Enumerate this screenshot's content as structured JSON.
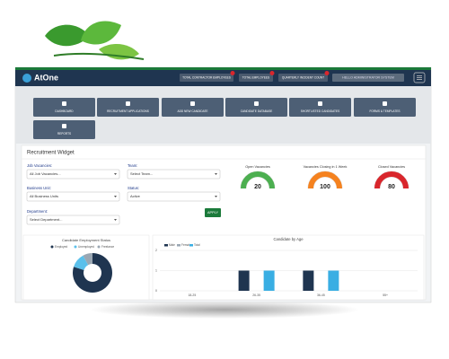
{
  "header": {
    "logo": "AtOne",
    "stats": [
      "TOTAL CONTRACTOR EMPLOYEES",
      "TOTAL EMPLOYEES",
      "QUARTERLY INCIDENT COUNT"
    ],
    "user": "HELLO ADMINISTRATOR SYSTEM"
  },
  "nav": [
    "DASHBOARD",
    "RECRUITMENT APPLICATIONS",
    "ADD NEW CANDIDATE",
    "CANDIDATE DATABASE",
    "SHORTLISTED CANDIDATES",
    "FORMS & TEMPLATES",
    "REPORTS"
  ],
  "widget": {
    "title": "Recruitment Widget",
    "filters": [
      {
        "label": "Job Vacancies:",
        "value": "All Job Vacancies..."
      },
      {
        "label": "Team:",
        "value": "Select Team..."
      },
      {
        "label": "Business Unit:",
        "value": "All Business Units"
      },
      {
        "label": "Status:",
        "value": "Active"
      },
      {
        "label": "Department:",
        "value": "Select Department..."
      }
    ],
    "apply": "APPLY",
    "gauges": [
      {
        "title": "Open Vacancies",
        "value": 20,
        "color": "#4caf50"
      },
      {
        "title": "Vacancies Closing in 1 Week",
        "value": 100,
        "color": "#f5821f"
      },
      {
        "title": "Closed Vacancies",
        "value": 80,
        "color": "#d9262c"
      }
    ]
  },
  "chart_data": [
    {
      "type": "pie",
      "title": "Candidate Employment Status",
      "donut": true,
      "categories": [
        "Employed",
        "Unemployed",
        "Freelance"
      ],
      "values": [
        80,
        12,
        8
      ],
      "colors": [
        "#1f3550",
        "#5bc0eb",
        "#9aa7b3"
      ]
    },
    {
      "type": "bar",
      "title": "Candidate by Age",
      "categories": [
        "18-25",
        "26-35",
        "36-45",
        "55+"
      ],
      "series": [
        {
          "name": "Male",
          "color": "#1f3550",
          "values": [
            0,
            1,
            1,
            0
          ]
        },
        {
          "name": "Female",
          "color": "#9aa7b3",
          "values": [
            0,
            0,
            0,
            0
          ]
        },
        {
          "name": "Total",
          "color": "#39aee3",
          "values": [
            0,
            1,
            1,
            0
          ]
        }
      ],
      "ylim": [
        0,
        2
      ],
      "yticks": [
        0,
        1,
        2
      ],
      "grid": true
    }
  ]
}
